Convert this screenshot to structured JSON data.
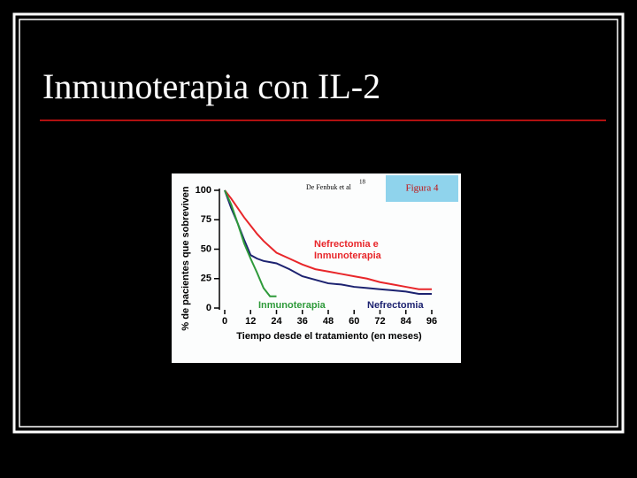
{
  "slide": {
    "title": "Inmunoterapia con IL-2"
  },
  "chart_data": {
    "type": "line",
    "source": "De Fenbuk et al",
    "source_ref": "18",
    "figure_label": "Figura 4",
    "y_label": "% de pacientes que sobreviven",
    "x_label": "Tiempo desde el tratamiento (en meses)",
    "x": [
      0,
      3,
      6,
      9,
      12,
      15,
      18,
      21,
      24,
      30,
      36,
      42,
      48,
      54,
      60,
      66,
      72,
      78,
      84,
      90,
      96
    ],
    "xlim": [
      0,
      96
    ],
    "xticks": [
      0,
      12,
      24,
      36,
      48,
      60,
      72,
      84,
      96
    ],
    "ylim": [
      0,
      100
    ],
    "yticks": [
      0,
      25,
      50,
      75,
      100
    ],
    "series": [
      {
        "name": "Nefrectomia e Inmunoterapia",
        "color": "#e8262a",
        "values": [
          100,
          93,
          85,
          77,
          70,
          63,
          57,
          52,
          47,
          42,
          37,
          33,
          31,
          29,
          27,
          25,
          22,
          20,
          18,
          16,
          16
        ]
      },
      {
        "name": "Nefrectomia",
        "color": "#1c2270",
        "values": [
          100,
          85,
          72,
          58,
          45,
          42,
          40,
          39,
          38,
          33,
          27,
          24,
          21,
          20,
          18,
          17,
          16,
          15,
          14,
          12,
          12
        ]
      },
      {
        "name": "Inmunoterapia",
        "color": "#2e9a3a",
        "values": [
          100,
          88,
          72,
          55,
          42,
          30,
          17,
          10,
          10,
          null,
          null,
          null,
          null,
          null,
          null,
          null,
          null,
          null,
          null,
          null,
          null
        ]
      }
    ]
  }
}
